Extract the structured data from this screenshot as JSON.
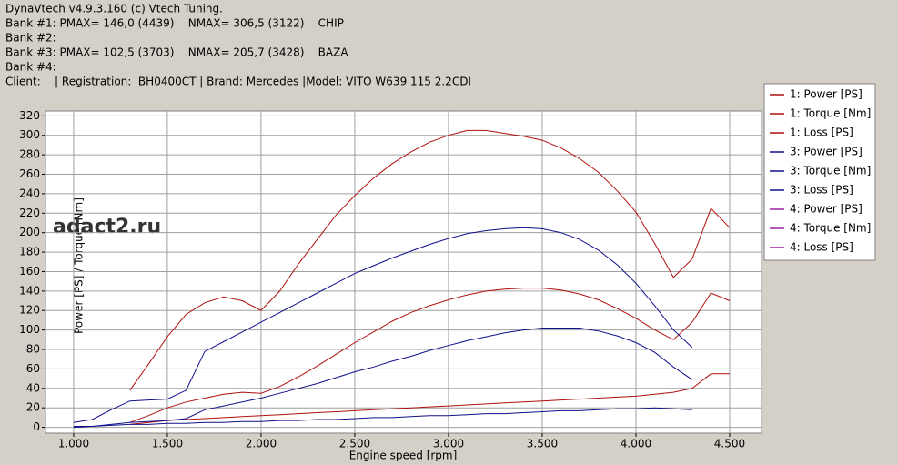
{
  "chart_data": {
    "type": "line",
    "header": [
      "DynaVtech v4.9.3.160 (c) Vtech Tuning.",
      "Bank #1: PMAX= 146,0 (4439)    NMAX= 306,5 (3122)    CHIP",
      "Bank #2:",
      "Bank #3: PMAX= 102,5 (3703)    NMAX= 205,7 (3428)    BAZA",
      "Bank #4:",
      "Client:    | Registration:  BH0400CT | Brand: Mercedes |Model: VITO W639 115 2.2CDI"
    ],
    "watermark": "adact2.ru",
    "x_label": "Engine speed [rpm]",
    "y_label": "Power [PS] / Torque [Nm]",
    "x": [
      1000,
      1100,
      1200,
      1300,
      1400,
      1500,
      1600,
      1700,
      1800,
      1900,
      2000,
      2100,
      2200,
      2300,
      2400,
      2500,
      2600,
      2700,
      2800,
      2900,
      3000,
      3100,
      3200,
      3300,
      3400,
      3500,
      3600,
      3700,
      3800,
      3900,
      4000,
      4100,
      4200,
      4300,
      4400,
      4500
    ],
    "series": [
      {
        "name": "1: Power [PS]",
        "color": "#b01010",
        "values": [
          null,
          null,
          null,
          5,
          12,
          20,
          26,
          30,
          34,
          36,
          35,
          42,
          52,
          63,
          75,
          87,
          98,
          109,
          118,
          125,
          131,
          136,
          140,
          142,
          143,
          143,
          141,
          137,
          131,
          122,
          112,
          100,
          90,
          108,
          138,
          130
        ]
      },
      {
        "name": "1: Torque [Nm]",
        "color": "#b01010",
        "values": [
          null,
          null,
          null,
          38,
          65,
          93,
          116,
          128,
          134,
          130,
          120,
          140,
          168,
          193,
          218,
          238,
          256,
          271,
          283,
          293,
          300,
          305,
          305,
          302,
          299,
          295,
          287,
          276,
          262,
          243,
          221,
          189,
          154,
          173,
          225,
          205
        ]
      },
      {
        "name": "1: Loss [PS]",
        "color": "#b01010",
        "values": [
          null,
          null,
          null,
          3,
          5,
          7,
          8,
          9,
          10,
          11,
          12,
          13,
          14,
          15,
          16,
          17,
          18,
          19,
          20,
          21,
          22,
          23,
          24,
          25,
          26,
          27,
          28,
          29,
          30,
          31,
          32,
          34,
          36,
          40,
          55,
          55
        ]
      },
      {
        "name": "3: Power [PS]",
        "color": "#10108c",
        "values": [
          1,
          1,
          3,
          5,
          6,
          7,
          9,
          18,
          22,
          26,
          30,
          35,
          40,
          45,
          51,
          57,
          62,
          68,
          73,
          79,
          84,
          89,
          93,
          97,
          100,
          102,
          102,
          102,
          99,
          94,
          87,
          77,
          62,
          49,
          null,
          null
        ]
      },
      {
        "name": "3: Torque [Nm]",
        "color": "#10108c",
        "values": [
          5,
          8,
          18,
          27,
          28,
          29,
          38,
          78,
          88,
          98,
          108,
          118,
          128,
          138,
          148,
          158,
          166,
          174,
          181,
          188,
          194,
          199,
          202,
          204,
          205,
          204,
          200,
          193,
          182,
          167,
          148,
          125,
          100,
          82,
          null,
          null
        ]
      },
      {
        "name": "3: Loss [PS]",
        "color": "#10108c",
        "values": [
          0,
          1,
          2,
          3,
          3,
          4,
          4,
          5,
          5,
          6,
          6,
          7,
          7,
          8,
          8,
          9,
          10,
          10,
          11,
          12,
          12,
          13,
          14,
          14,
          15,
          16,
          17,
          17,
          18,
          19,
          19,
          20,
          19,
          18,
          null,
          null
        ]
      },
      {
        "name": "4: Power [PS]",
        "color": "#a020a0",
        "values": [
          null,
          null,
          null,
          null,
          null,
          null,
          null,
          null,
          null,
          null,
          null,
          null,
          null,
          null,
          null,
          null,
          null,
          null,
          null,
          null,
          null,
          null,
          null,
          null,
          null,
          null,
          null,
          null,
          null,
          null,
          null,
          null,
          null,
          null,
          null,
          null
        ]
      },
      {
        "name": "4: Torque [Nm]",
        "color": "#a020a0",
        "values": [
          null,
          null,
          null,
          null,
          null,
          null,
          null,
          null,
          null,
          null,
          null,
          null,
          null,
          null,
          null,
          null,
          null,
          null,
          null,
          null,
          null,
          null,
          null,
          null,
          null,
          null,
          null,
          null,
          null,
          null,
          null,
          null,
          null,
          null,
          null,
          null
        ]
      },
      {
        "name": "4: Loss [PS]",
        "color": "#a020a0",
        "values": [
          null,
          null,
          null,
          null,
          null,
          null,
          null,
          null,
          null,
          null,
          null,
          null,
          null,
          null,
          null,
          null,
          null,
          null,
          null,
          null,
          null,
          null,
          null,
          null,
          null,
          null,
          null,
          null,
          null,
          null,
          null,
          null,
          null,
          null,
          null,
          null
        ]
      }
    ],
    "xlim": [
      850,
      4670
    ],
    "ylim": [
      -6,
      325
    ],
    "xticks": [
      {
        "value": 1000,
        "label": "1.000"
      },
      {
        "value": 1500,
        "label": "1.500"
      },
      {
        "value": 2000,
        "label": "2.000"
      },
      {
        "value": 2500,
        "label": "2.500"
      },
      {
        "value": 3000,
        "label": "3.000"
      },
      {
        "value": 3500,
        "label": "3.500"
      },
      {
        "value": 4000,
        "label": "4.000"
      },
      {
        "value": 4500,
        "label": "4.500"
      }
    ],
    "yticks": [
      0,
      20,
      40,
      60,
      80,
      100,
      120,
      140,
      160,
      180,
      200,
      220,
      240,
      260,
      280,
      300,
      320
    ],
    "grid": true,
    "legend": "right"
  }
}
